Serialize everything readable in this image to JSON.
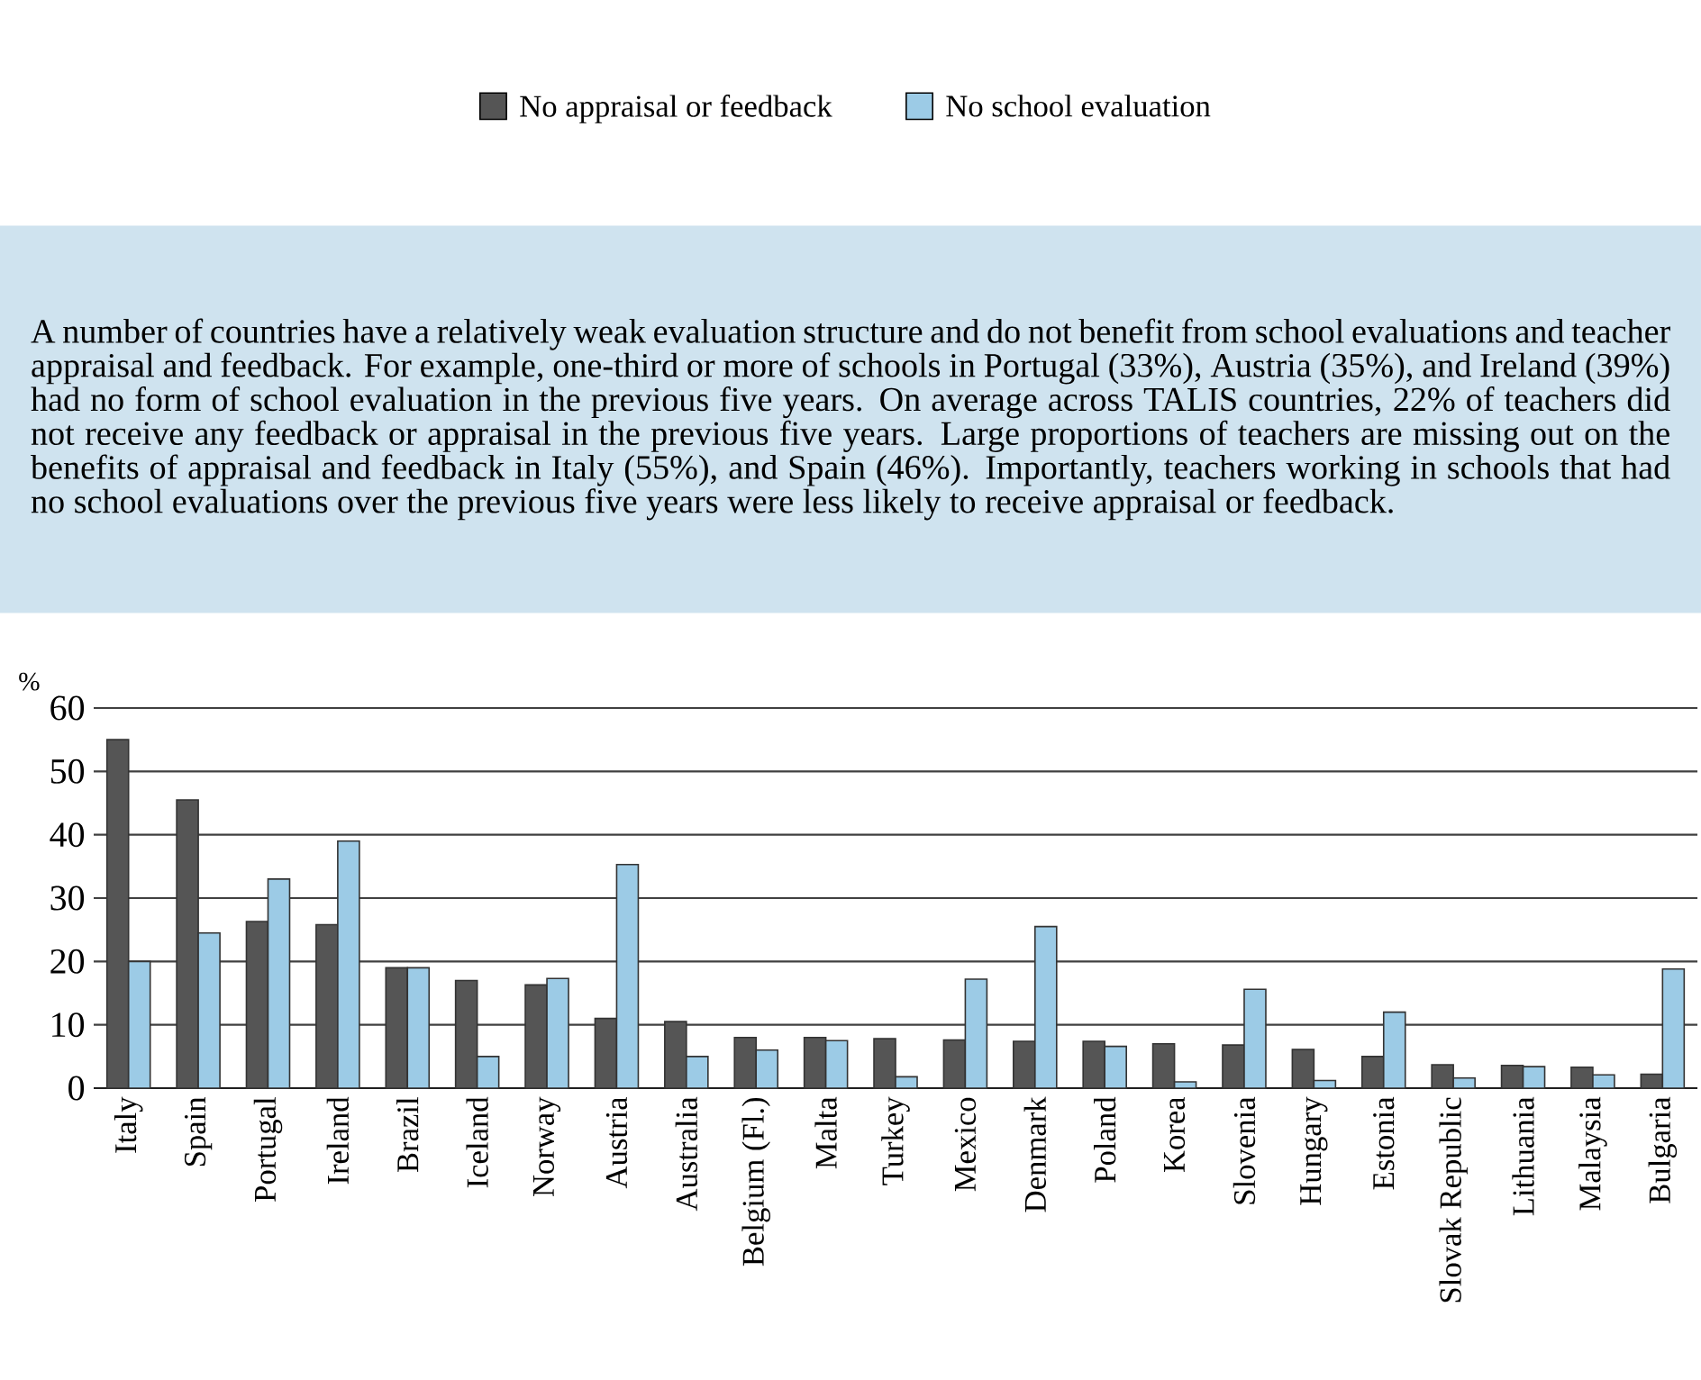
{
  "chart_data": {
    "type": "bar",
    "ylabel": "%",
    "categories": [
      "Italy",
      "Spain",
      "Portugal",
      "Ireland",
      "Brazil",
      "Iceland",
      "Norway",
      "Austria",
      "Australia",
      "Belgium (Fl.)",
      "Malta",
      "Turkey",
      "Mexico",
      "Denmark",
      "Poland",
      "Korea",
      "Slovenia",
      "Hungary",
      "Estonia",
      "Slovak Republic",
      "Lithuania",
      "Malaysia",
      "Bulgaria"
    ],
    "series": [
      {
        "name": "No appraisal or feedback",
        "color": "#555555",
        "values": [
          55,
          45.5,
          26.3,
          25.8,
          19,
          17,
          16.3,
          11,
          10.5,
          8,
          8,
          7.8,
          7.6,
          7.4,
          7.4,
          7,
          6.8,
          6.1,
          5,
          3.7,
          3.6,
          3.3,
          2.2
        ]
      },
      {
        "name": "No school evaluation",
        "color": "#9ccbe6",
        "values": [
          20,
          24.5,
          33,
          39,
          19,
          5,
          17.3,
          35.3,
          5,
          6,
          7.5,
          1.8,
          17.2,
          25.5,
          6.6,
          1,
          15.6,
          1.2,
          12,
          1.6,
          3.4,
          2.1,
          18.8
        ]
      }
    ],
    "ylim": [
      0,
      60
    ],
    "yticks": [
      0,
      10,
      20,
      30,
      40,
      50,
      60
    ],
    "grid": "y",
    "legend": "top",
    "annotations": [
      "A number of countries have a relatively weak evaluation structure and do not benefit from school evaluations and teacher appraisal and feedback. For example, one-third or more of schools in Portugal (33%), Austria (35%), and Ireland (39%) had no form of school evaluation in the previous five years. On average across TALIS countries, 22% of teachers did not receive any feedback or appraisal in the previous five years. Large proportions of teachers are missing out on the benefits of appraisal and feedback in Italy (55%), and Spain (46%). Importantly, teachers working in schools that had no school evaluations over the previous five years were less likely to receive appraisal or feedback."
    ]
  }
}
